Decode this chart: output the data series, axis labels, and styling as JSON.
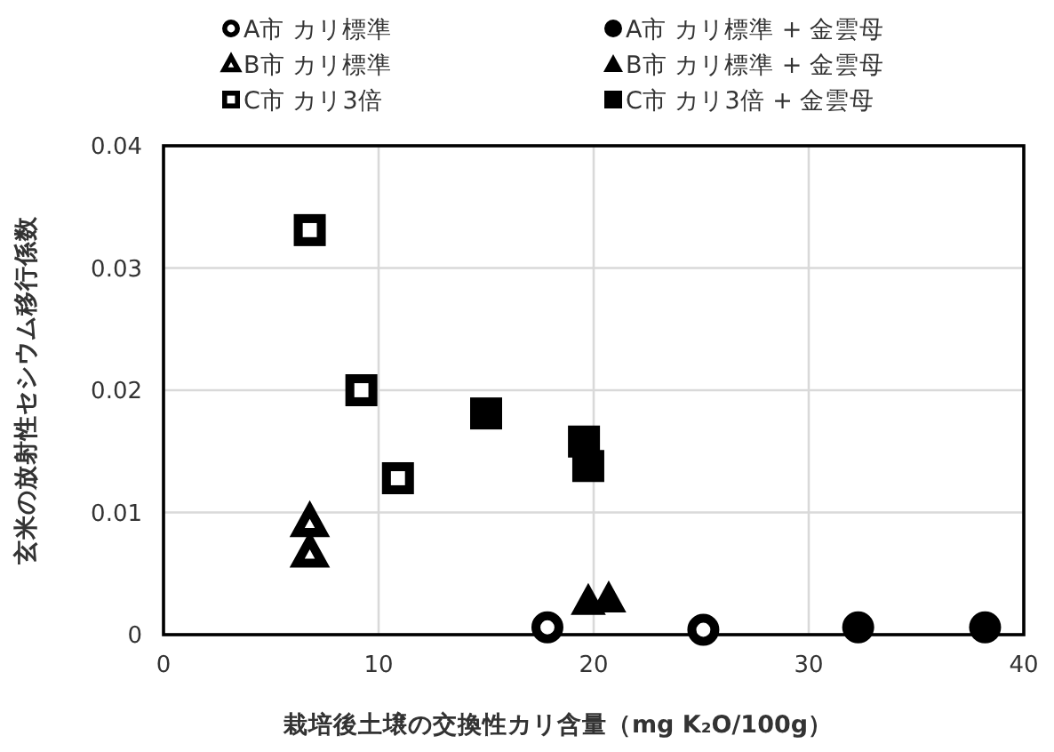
{
  "chart_data": {
    "type": "scatter",
    "xlabel": "栽培後土壌の交換性カリ含量（mg K₂O/100g）",
    "ylabel": "玄米の放射性セシウム移行係数",
    "xlim": [
      0,
      40
    ],
    "xticks": [
      0,
      10,
      20,
      30,
      40
    ],
    "ylim": [
      0,
      0.04
    ],
    "yticks": [
      0,
      0.01,
      0.02,
      0.03,
      0.04
    ],
    "grid": true,
    "legend": "top",
    "series": [
      {
        "name": "A市 カリ標準",
        "color": "#000000",
        "marker": "circle-open",
        "x": [
          17.85,
          25.1
        ],
        "values": [
          0.0006,
          0.0004
        ]
      },
      {
        "name": "B市 カリ標準",
        "color": "#000000",
        "marker": "triangle-open",
        "x": [
          6.8,
          6.8
        ],
        "values": [
          0.0092,
          0.0067
        ]
      },
      {
        "name": "C市 カリ3倍",
        "color": "#000000",
        "marker": "square-open",
        "x": [
          6.8,
          9.2,
          10.9
        ],
        "values": [
          0.0331,
          0.02,
          0.0128
        ]
      },
      {
        "name": "A市 カリ標準 + 金雲母",
        "color": "#000000",
        "marker": "circle",
        "x": [
          32.3,
          38.2
        ],
        "values": [
          0.0006,
          0.0006
        ]
      },
      {
        "name": "B市 カリ標準 + 金雲母",
        "color": "#000000",
        "marker": "triangle",
        "x": [
          19.75,
          20.7
        ],
        "values": [
          0.0028,
          0.003
        ]
      },
      {
        "name": "C市 カリ3倍 + 金雲母",
        "color": "#000000",
        "marker": "square",
        "x": [
          15.0,
          19.55,
          19.75
        ],
        "values": [
          0.0181,
          0.0158,
          0.0138
        ]
      }
    ]
  }
}
